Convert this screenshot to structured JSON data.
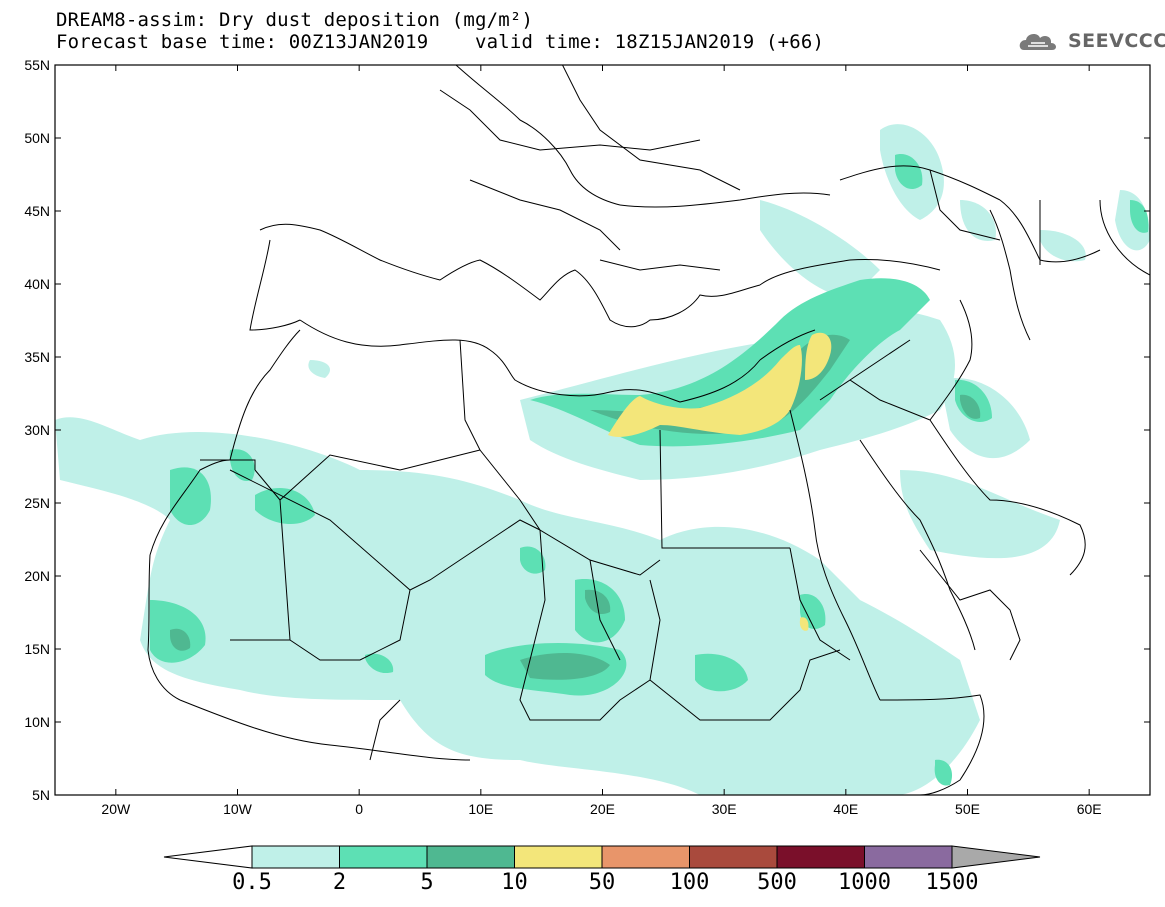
{
  "header": {
    "title_line1": "DREAM8-assim: Dry dust deposition (mg/m²)",
    "title_line2": "Forecast base time: 00Z13JAN2019    valid time: 18Z15JAN2019 (+66)"
  },
  "logo": {
    "text": "SEEVCCC",
    "icon": "cloud-logo-icon"
  },
  "map": {
    "lat_labels": [
      "55N",
      "50N",
      "45N",
      "40N",
      "35N",
      "30N",
      "25N",
      "20N",
      "15N",
      "10N",
      "5N"
    ],
    "lon_labels": [
      "20W",
      "10W",
      "0",
      "10E",
      "20E",
      "30E",
      "40E",
      "50E",
      "60E"
    ],
    "extent": {
      "lon": [
        -25,
        65
      ],
      "lat": [
        5,
        55
      ]
    }
  },
  "colorbar": {
    "labels": [
      "0.5",
      "2",
      "5",
      "10",
      "50",
      "100",
      "500",
      "1000",
      "1500"
    ],
    "colors": [
      "#bff0e8",
      "#5de0b4",
      "#4fb891",
      "#f3e67a",
      "#e8956a",
      "#a94a3d",
      "#7a0f2a",
      "#8a6a9f"
    ],
    "under_color": "#ffffff",
    "over_color": "#a9a9a9"
  },
  "fields": {
    "light": "#bff0e8",
    "medium": "#5de0b4",
    "dark": "#4fb891",
    "yellow": "#f3e67a"
  }
}
